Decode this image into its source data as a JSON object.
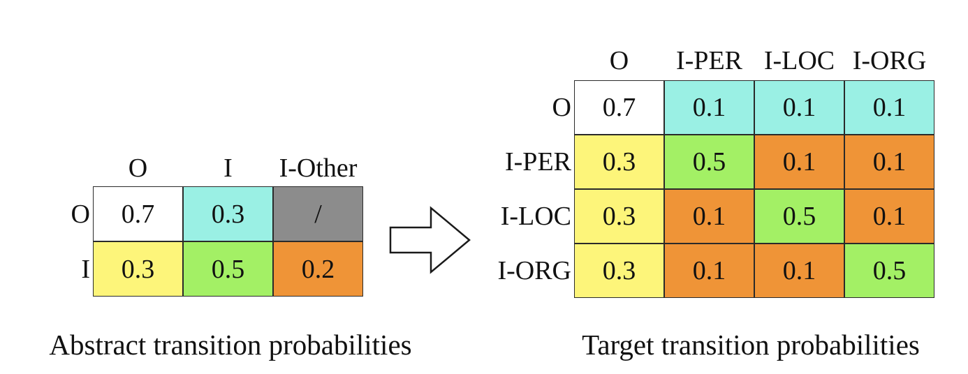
{
  "abstract": {
    "col_labels": [
      "O",
      "I",
      "I-Other"
    ],
    "row_labels": [
      "O",
      "I"
    ],
    "cells": [
      [
        {
          "text": "0.7",
          "color": "#ffffff"
        },
        {
          "text": "0.3",
          "color": "#9af0e4"
        },
        {
          "text": "/",
          "color": "#8c8c8c"
        }
      ],
      [
        {
          "text": "0.3",
          "color": "#fdf57a"
        },
        {
          "text": "0.5",
          "color": "#a3f065"
        },
        {
          "text": "0.2",
          "color": "#ef9437"
        }
      ]
    ],
    "caption": "Abstract transition probabilities"
  },
  "target": {
    "col_labels": [
      "O",
      "I-PER",
      "I-LOC",
      "I-ORG"
    ],
    "row_labels": [
      "O",
      "I-PER",
      "I-LOC",
      "I-ORG"
    ],
    "cells": [
      [
        {
          "text": "0.7",
          "color": "#ffffff"
        },
        {
          "text": "0.1",
          "color": "#9af0e4"
        },
        {
          "text": "0.1",
          "color": "#9af0e4"
        },
        {
          "text": "0.1",
          "color": "#9af0e4"
        }
      ],
      [
        {
          "text": "0.3",
          "color": "#fdf57a"
        },
        {
          "text": "0.5",
          "color": "#a3f065"
        },
        {
          "text": "0.1",
          "color": "#ef9437"
        },
        {
          "text": "0.1",
          "color": "#ef9437"
        }
      ],
      [
        {
          "text": "0.3",
          "color": "#fdf57a"
        },
        {
          "text": "0.1",
          "color": "#ef9437"
        },
        {
          "text": "0.5",
          "color": "#a3f065"
        },
        {
          "text": "0.1",
          "color": "#ef9437"
        }
      ],
      [
        {
          "text": "0.3",
          "color": "#fdf57a"
        },
        {
          "text": "0.1",
          "color": "#ef9437"
        },
        {
          "text": "0.1",
          "color": "#ef9437"
        },
        {
          "text": "0.5",
          "color": "#a3f065"
        }
      ]
    ],
    "caption": "Target transition probabilities"
  },
  "arrow_icon": "right-arrow-icon"
}
